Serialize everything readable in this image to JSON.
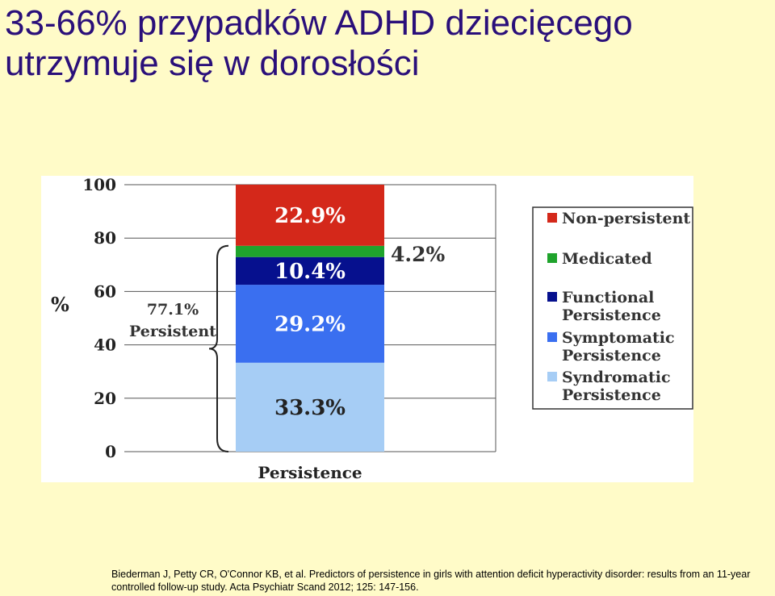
{
  "slide": {
    "title_line1": "33-66% przypadków ADHD dziecięcego",
    "title_line2": "utrzymuje się w dorosłości",
    "citation_line1": "Biederman J, Petty CR, O'Connor KB, et al. Predictors of persistence in girls with attention deficit hyperactivity disorder: results from an 11-year",
    "citation_line2": "controlled follow-up study. Acta Psychiatr Scand 2012; 125: 147-156."
  },
  "chart_data": {
    "type": "bar",
    "stacked": true,
    "categories": [
      "Persistence"
    ],
    "ylabel": "%",
    "ylim": [
      0,
      100
    ],
    "yticks": [
      0,
      20,
      40,
      60,
      80,
      100
    ],
    "grid": true,
    "legend_position": "right",
    "series": [
      {
        "name": "Syndromatic Persistence",
        "values": [
          33.3
        ],
        "label": "33.3%",
        "color": "#a6cdf5"
      },
      {
        "name": "Symptomatic Persistence",
        "values": [
          29.2
        ],
        "label": "29.2%",
        "color": "#3a6ff0"
      },
      {
        "name": "Functional Persistence",
        "values": [
          10.4
        ],
        "label": "10.4%",
        "color": "#06108e"
      },
      {
        "name": "Medicated",
        "values": [
          4.2
        ],
        "label": "4.2%",
        "color": "#1fa32c"
      },
      {
        "name": "Non-persistent",
        "values": [
          22.9
        ],
        "label": "22.9%",
        "color": "#d4281a"
      }
    ],
    "legend": [
      {
        "line1": "Non-persistent",
        "line2": "",
        "color": "#d4281a"
      },
      {
        "line1": "Medicated",
        "line2": "",
        "color": "#1fa32c"
      },
      {
        "line1": "Functional",
        "line2": "Persistence",
        "color": "#06108e"
      },
      {
        "line1": "Symptomatic",
        "line2": "Persistence",
        "color": "#3a6ff0"
      },
      {
        "line1": "Syndromatic",
        "line2": "Persistence",
        "color": "#a6cdf5"
      }
    ],
    "annotation": {
      "line1": "77.1%",
      "line2": "Persistent"
    }
  }
}
